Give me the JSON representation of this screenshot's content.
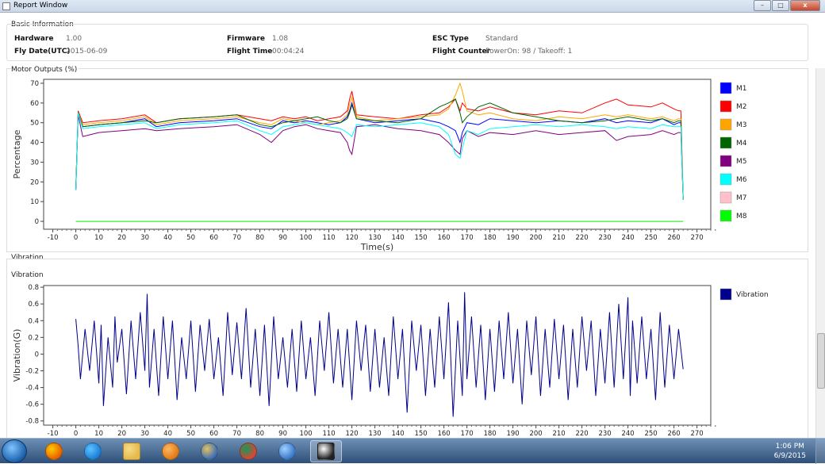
{
  "window": {
    "title": "Report Window",
    "minimize": "–",
    "maximize": "□",
    "close": "x"
  },
  "basic_info": {
    "label": "Basic Information",
    "fields": [
      {
        "key": "Hardware",
        "value": "1.00"
      },
      {
        "key": "Fly Date(UTC)",
        "value": "2015-06-09"
      },
      {
        "key": "Firmware",
        "value": "1.08"
      },
      {
        "key": "Flight Time",
        "value": "00:04:24"
      },
      {
        "key": "ESC Type",
        "value": "Standard"
      },
      {
        "key": "Flight Counter",
        "value": "PowerOn: 98 / Takeoff: 1"
      }
    ]
  },
  "motor_section": {
    "label": "Motor Outputs  (%)"
  },
  "vibration_section": {
    "label": "Vibration",
    "chart_label": "Vibration"
  },
  "chart_data": [
    {
      "type": "line",
      "ylabel": "Percentage",
      "xlabel": "Time(s)",
      "xlim": [
        -14,
        276
      ],
      "ylim": [
        -4,
        72
      ],
      "xticks": [
        -10,
        0,
        10,
        20,
        30,
        40,
        50,
        60,
        70,
        80,
        90,
        100,
        110,
        120,
        130,
        140,
        150,
        160,
        170,
        180,
        190,
        200,
        210,
        220,
        230,
        240,
        250,
        260,
        270
      ],
      "yticks": [
        0,
        10,
        20,
        30,
        40,
        50,
        60,
        70
      ],
      "x": [
        0,
        1,
        3,
        10,
        20,
        30,
        35,
        45,
        60,
        70,
        80,
        85,
        90,
        95,
        100,
        105,
        110,
        115,
        118,
        119,
        120,
        122,
        130,
        140,
        150,
        158,
        162,
        165,
        167,
        168,
        170,
        175,
        180,
        190,
        200,
        210,
        220,
        230,
        235,
        240,
        250,
        255,
        260,
        262,
        263,
        264
      ],
      "series": [
        {
          "name": "M1",
          "color": "#0000ff",
          "values": [
            16,
            55,
            48,
            49,
            50,
            52,
            48,
            50,
            51,
            52,
            48,
            47,
            51,
            50,
            51,
            50,
            49,
            50,
            53,
            56,
            60,
            52,
            50,
            51,
            52,
            50,
            48,
            46,
            40,
            45,
            50,
            49,
            52,
            51,
            50,
            51,
            50,
            52,
            50,
            51,
            50,
            52,
            49,
            50,
            50,
            11
          ]
        },
        {
          "name": "M2",
          "color": "#ff0000",
          "values": [
            17,
            56,
            50,
            51,
            52,
            54,
            50,
            52,
            53,
            54,
            52,
            51,
            53,
            52,
            53,
            51,
            52,
            53,
            56,
            62,
            66,
            54,
            53,
            52,
            54,
            55,
            58,
            62,
            56,
            60,
            57,
            56,
            58,
            55,
            54,
            56,
            55,
            60,
            62,
            59,
            58,
            60,
            57,
            56,
            56,
            12
          ]
        },
        {
          "name": "M3",
          "color": "#ffa500",
          "values": [
            17,
            55,
            49,
            50,
            51,
            53,
            49,
            51,
            52,
            53,
            50,
            49,
            52,
            51,
            50,
            49,
            50,
            51,
            54,
            59,
            63,
            53,
            51,
            52,
            53,
            54,
            57,
            64,
            70,
            66,
            56,
            54,
            55,
            52,
            51,
            53,
            52,
            54,
            53,
            54,
            52,
            53,
            51,
            52,
            52,
            12
          ]
        },
        {
          "name": "M4",
          "color": "#006400",
          "values": [
            17,
            55,
            48,
            49,
            50,
            51,
            50,
            52,
            53,
            54,
            49,
            48,
            50,
            51,
            52,
            53,
            51,
            50,
            52,
            55,
            59,
            52,
            51,
            50,
            52,
            58,
            60,
            62,
            55,
            50,
            53,
            58,
            60,
            55,
            53,
            51,
            50,
            51,
            52,
            53,
            51,
            52,
            50,
            51,
            51,
            11
          ]
        },
        {
          "name": "M5",
          "color": "#800080",
          "values": [
            16,
            54,
            43,
            45,
            46,
            47,
            46,
            47,
            48,
            49,
            44,
            40,
            46,
            48,
            49,
            47,
            46,
            45,
            40,
            36,
            34,
            48,
            49,
            47,
            46,
            44,
            40,
            36,
            34,
            42,
            46,
            43,
            45,
            44,
            46,
            44,
            45,
            46,
            41,
            43,
            44,
            46,
            44,
            45,
            45,
            11
          ]
        },
        {
          "name": "M6",
          "color": "#00ffff",
          "values": [
            16,
            55,
            47,
            48,
            49,
            50,
            47,
            49,
            50,
            51,
            46,
            44,
            48,
            49,
            50,
            49,
            48,
            47,
            45,
            44,
            43,
            49,
            48,
            49,
            50,
            48,
            44,
            34,
            32,
            37,
            46,
            44,
            47,
            48,
            49,
            48,
            49,
            48,
            47,
            48,
            47,
            49,
            48,
            48,
            48,
            11
          ]
        },
        {
          "name": "M7",
          "color": "#ffc0cb",
          "values": [
            0,
            0,
            0,
            0,
            0,
            0,
            0,
            0,
            0,
            0,
            0,
            0,
            0,
            0,
            0,
            0,
            0,
            0,
            0,
            0,
            0,
            0,
            0,
            0,
            0,
            0,
            0,
            0,
            0,
            0,
            0,
            0,
            0,
            0,
            0,
            0,
            0,
            0,
            0,
            0,
            0,
            0,
            0,
            0,
            0,
            0
          ]
        },
        {
          "name": "M8",
          "color": "#00ff00",
          "values": [
            0,
            0,
            0,
            0,
            0,
            0,
            0,
            0,
            0,
            0,
            0,
            0,
            0,
            0,
            0,
            0,
            0,
            0,
            0,
            0,
            0,
            0,
            0,
            0,
            0,
            0,
            0,
            0,
            0,
            0,
            0,
            0,
            0,
            0,
            0,
            0,
            0,
            0,
            0,
            0,
            0,
            0,
            0,
            0,
            0,
            0
          ]
        }
      ]
    },
    {
      "type": "line",
      "ylabel": "Vibration(G)",
      "xlabel": "",
      "xlim": [
        -14,
        276
      ],
      "ylim": [
        -0.85,
        0.82
      ],
      "xticks": [
        -10,
        0,
        10,
        20,
        30,
        40,
        50,
        60,
        70,
        80,
        90,
        100,
        110,
        120,
        130,
        140,
        150,
        160,
        170,
        180,
        190,
        200,
        210,
        220,
        230,
        240,
        250,
        260,
        270
      ],
      "yticks": [
        0.8,
        0.6,
        0.4,
        0.2,
        0,
        -0.2,
        -0.4,
        -0.6,
        -0.8
      ],
      "x": [
        0,
        1,
        2,
        4,
        6,
        8,
        10,
        11,
        12,
        14,
        16,
        17,
        18,
        20,
        22,
        24,
        26,
        28,
        30,
        31,
        32,
        34,
        36,
        38,
        40,
        42,
        44,
        46,
        48,
        50,
        52,
        54,
        56,
        58,
        60,
        62,
        64,
        66,
        68,
        70,
        72,
        74,
        76,
        78,
        80,
        82,
        84,
        86,
        88,
        90,
        92,
        94,
        96,
        98,
        100,
        102,
        104,
        106,
        108,
        110,
        112,
        114,
        116,
        118,
        120,
        122,
        124,
        126,
        128,
        130,
        132,
        134,
        136,
        138,
        140,
        142,
        144,
        146,
        148,
        150,
        152,
        154,
        156,
        158,
        160,
        162,
        164,
        166,
        168,
        169,
        170,
        172,
        174,
        176,
        178,
        180,
        182,
        184,
        186,
        188,
        190,
        192,
        194,
        196,
        198,
        200,
        202,
        204,
        206,
        208,
        210,
        212,
        214,
        216,
        218,
        220,
        222,
        224,
        226,
        228,
        230,
        232,
        234,
        236,
        238,
        240,
        241,
        242,
        244,
        246,
        248,
        250,
        252,
        254,
        256,
        258,
        260,
        262,
        264
      ],
      "series": [
        {
          "name": "Vibration",
          "color": "#00008b",
          "values": [
            0.42,
            0.1,
            -0.3,
            0.3,
            -0.2,
            0.4,
            -0.35,
            0.35,
            -0.62,
            0.2,
            -0.4,
            0.45,
            -0.1,
            0.3,
            -0.48,
            0.4,
            -0.3,
            0.5,
            -0.2,
            0.72,
            -0.4,
            0.3,
            -0.5,
            0.45,
            -0.3,
            0.4,
            -0.55,
            0.2,
            -0.3,
            0.4,
            -0.45,
            0.35,
            -0.2,
            0.42,
            -0.3,
            0.2,
            -0.5,
            0.5,
            -0.25,
            0.38,
            -0.3,
            0.55,
            -0.4,
            0.3,
            -0.5,
            0.35,
            -0.62,
            0.45,
            -0.3,
            0.2,
            -0.4,
            0.3,
            -0.45,
            0.4,
            -0.3,
            0.2,
            -0.5,
            0.4,
            -0.2,
            0.5,
            -0.35,
            0.3,
            -0.4,
            0.3,
            -0.55,
            0.4,
            -0.2,
            0.35,
            -0.45,
            0.3,
            -0.4,
            0.2,
            -0.5,
            0.45,
            -0.3,
            0.3,
            -0.7,
            0.4,
            -0.2,
            0.35,
            -0.5,
            0.3,
            -0.4,
            0.45,
            -0.3,
            0.62,
            -0.75,
            0.4,
            -0.5,
            0.74,
            -0.3,
            0.45,
            -0.4,
            0.35,
            -0.55,
            0.3,
            -0.45,
            0.4,
            -0.3,
            0.5,
            -0.35,
            0.3,
            -0.6,
            0.4,
            -0.25,
            0.45,
            -0.5,
            0.3,
            -0.4,
            0.42,
            -0.3,
            0.35,
            -0.55,
            0.3,
            -0.4,
            0.45,
            -0.2,
            0.4,
            -0.5,
            0.3,
            -0.35,
            0.5,
            -0.4,
            0.6,
            -0.3,
            0.68,
            -0.5,
            0.4,
            -0.35,
            0.45,
            -0.3,
            0.3,
            -0.55,
            0.5,
            -0.4,
            0.35,
            -0.3,
            0.3,
            -0.18
          ]
        }
      ]
    }
  ],
  "taskbar": {
    "apps": [
      "firefox-icon",
      "ie-icon",
      "explorer-icon",
      "media-player-icon",
      "paint-icon",
      "chrome-icon",
      "network-app-icon",
      "report-app-icon"
    ],
    "time": "1:06 PM",
    "date": "6/9/2015"
  }
}
